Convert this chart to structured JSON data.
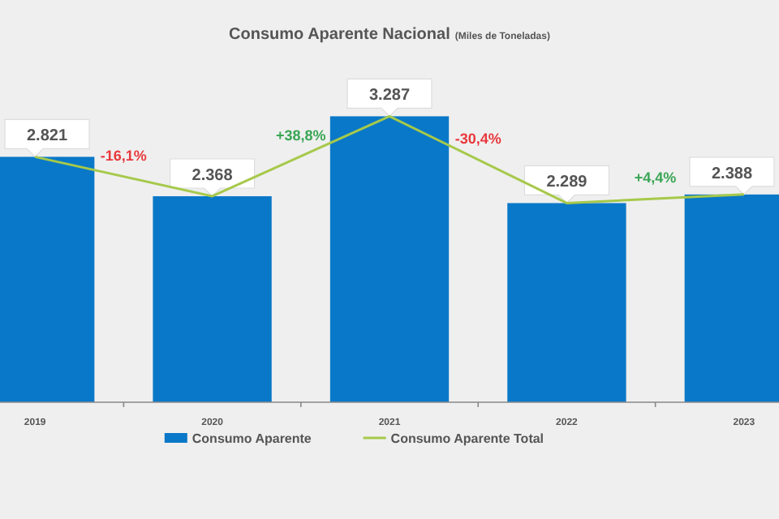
{
  "chart_data": {
    "type": "bar",
    "title": "Consumo Aparente Nacional",
    "subtitle": "(Miles de Toneladas)",
    "categories": [
      "2019",
      "2020",
      "2021",
      "2022",
      "2023"
    ],
    "ylim": [
      0,
      3300
    ],
    "tick_labels": "x",
    "legend": "bottom",
    "series": [
      {
        "name": "Consumo Aparente",
        "color": "#0a78c8",
        "values": [
          2821,
          2368,
          3287,
          2289,
          2388
        ],
        "value_labels": [
          "2.821",
          "2.368",
          "3.287",
          "2.289",
          "2.388"
        ]
      },
      {
        "name": "Consumo Aparente Total",
        "type": "line",
        "color": "#a6c94a",
        "values": [
          2821,
          2368,
          3287,
          2289,
          2388
        ],
        "marker": "none"
      }
    ],
    "annotations": [
      "-16,1%",
      "+38,8%",
      "-30,4%",
      "+4,4%"
    ]
  }
}
